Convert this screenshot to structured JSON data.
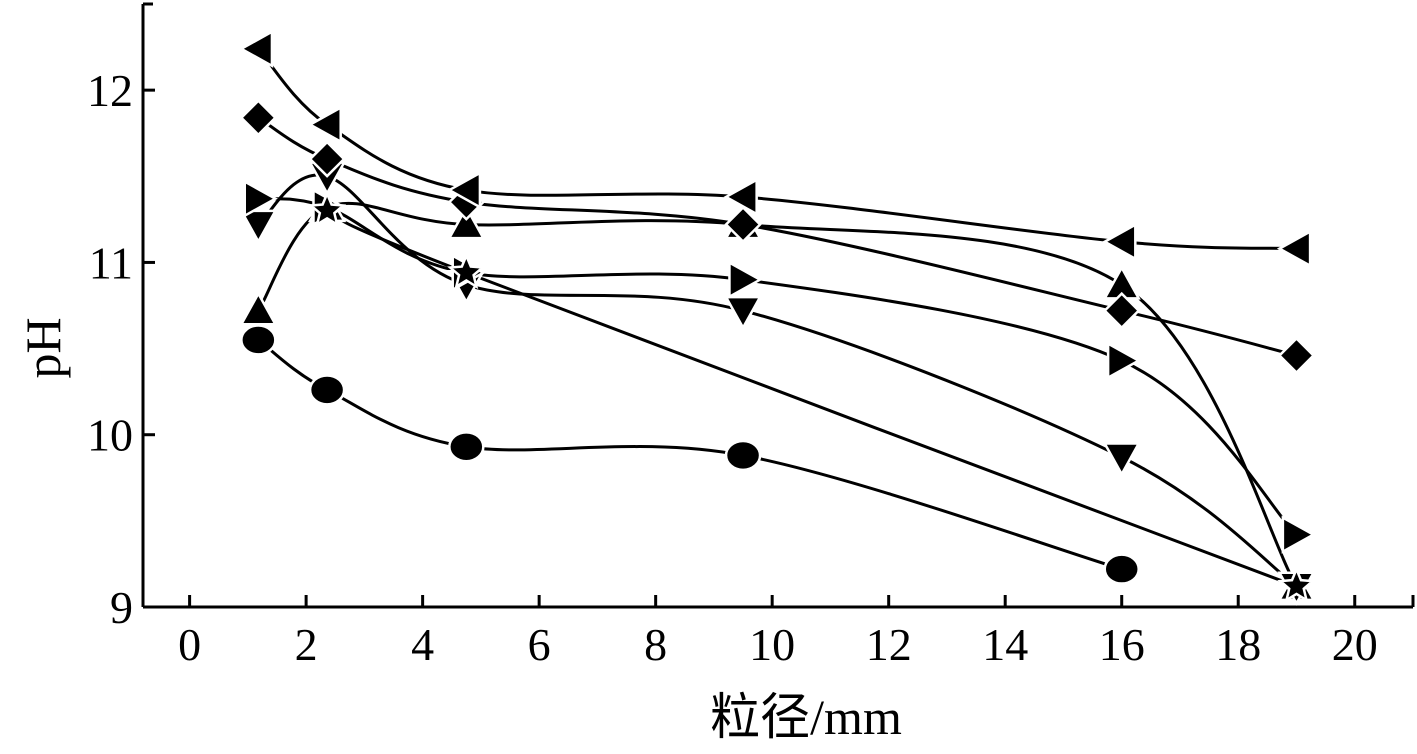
{
  "chart_data": {
    "type": "line",
    "xlabel": "粒径/mm",
    "ylabel": "pH",
    "xlim": [
      -0.8,
      21
    ],
    "ylim": [
      9,
      12.5
    ],
    "xticks": [
      "0",
      "2",
      "4",
      "6",
      "8",
      "10",
      "12",
      "14",
      "16",
      "18",
      "20"
    ],
    "yticks": [
      "9",
      "10",
      "11",
      "12"
    ],
    "x": [
      1.18,
      2.36,
      4.75,
      9.5,
      16,
      19
    ],
    "grid": false,
    "legend": "none",
    "series": [
      {
        "marker": "circle",
        "values": [
          10.55,
          10.26,
          9.93,
          9.88,
          9.22,
          null
        ]
      },
      {
        "marker": "triangle-up",
        "values": [
          10.72,
          11.32,
          11.22,
          11.22,
          10.87,
          9.12
        ]
      },
      {
        "marker": "triangle-down",
        "values": [
          11.22,
          11.5,
          10.87,
          10.72,
          9.87,
          9.12
        ]
      },
      {
        "marker": "diamond",
        "values": [
          11.84,
          11.6,
          11.35,
          11.22,
          10.72,
          10.46
        ]
      },
      {
        "marker": "triangle-left",
        "values": [
          12.24,
          11.8,
          11.42,
          11.38,
          11.12,
          11.08
        ]
      },
      {
        "marker": "triangle-right",
        "values": [
          11.37,
          11.32,
          10.94,
          10.9,
          10.43,
          9.42
        ]
      },
      {
        "marker": "star",
        "values": [
          null,
          11.3,
          10.94,
          null,
          null,
          9.12
        ]
      }
    ]
  }
}
